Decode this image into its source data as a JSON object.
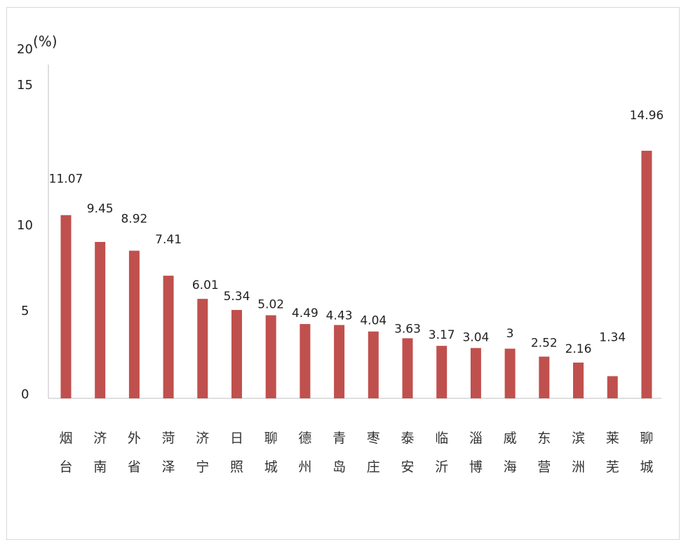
{
  "chart_data": {
    "type": "bar",
    "unit_label": "(%)",
    "categories": [
      [
        "烟",
        "台"
      ],
      [
        "济",
        "南"
      ],
      [
        "外",
        "省"
      ],
      [
        "菏",
        "泽"
      ],
      [
        "济",
        "宁"
      ],
      [
        "日",
        "照"
      ],
      [
        "聊",
        "城"
      ],
      [
        "德",
        "州"
      ],
      [
        "青",
        "岛"
      ],
      [
        "枣",
        "庄"
      ],
      [
        "泰",
        "安"
      ],
      [
        "临",
        "沂"
      ],
      [
        "淄",
        "博"
      ],
      [
        "威",
        "海"
      ],
      [
        "东",
        "营"
      ],
      [
        "滨",
        "洲"
      ],
      [
        "莱",
        "芜"
      ],
      [
        "聊",
        "城"
      ]
    ],
    "values": [
      11.07,
      9.45,
      8.92,
      7.41,
      6.01,
      5.34,
      5.02,
      4.49,
      4.43,
      4.04,
      3.63,
      3.17,
      3.04,
      3,
      2.52,
      2.16,
      1.34,
      14.96
    ],
    "value_labels": [
      "11.07",
      "9.45",
      "8.92",
      "7.41",
      "6.01",
      "5.34",
      "5.02",
      "4.49",
      "4.43",
      "4.04",
      "3.63",
      "3.17",
      "3.04",
      "3",
      "2.52",
      "2.16",
      "1.34",
      "14.96"
    ],
    "ytick_labels": [
      "0",
      "5",
      "10",
      "15",
      "20"
    ],
    "bar_color": "#c0504d"
  }
}
